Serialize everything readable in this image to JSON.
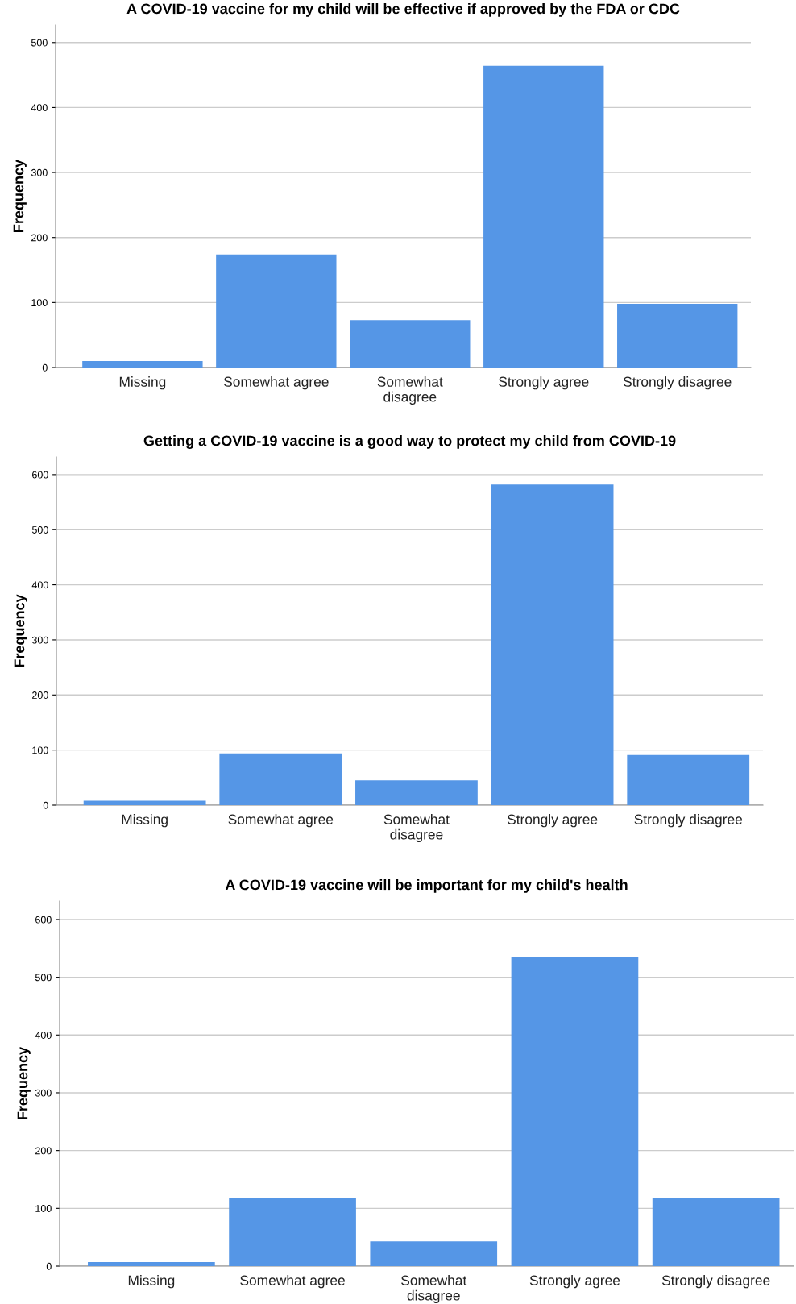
{
  "chart_data": [
    {
      "type": "bar",
      "title": "A COVID-19 vaccine for my child will be effective if approved by the FDA or CDC",
      "ylabel": "Frequency",
      "categories": [
        "Missing",
        "Somewhat agree",
        "Somewhat\ndisagree",
        "Strongly agree",
        "Strongly disagree"
      ],
      "values": [
        10,
        174,
        73,
        464,
        98
      ],
      "color": "#5596e6",
      "ylim": [
        0,
        527
      ],
      "yticks": [
        0,
        100,
        200,
        300,
        400,
        500
      ],
      "grid": "y"
    },
    {
      "type": "bar",
      "title": "Getting a COVID-19 vaccine is a good way to protect my child from COVID-19",
      "ylabel": "Frequency",
      "categories": [
        "Missing",
        "Somewhat agree",
        "Somewhat\ndisagree",
        "Strongly agree",
        "Strongly disagree"
      ],
      "values": [
        8,
        94,
        45,
        582,
        91
      ],
      "color": "#5596e6",
      "ylim": [
        0,
        632
      ],
      "yticks": [
        0,
        100,
        200,
        300,
        400,
        500,
        600
      ],
      "grid": "y"
    },
    {
      "type": "bar",
      "title": "A COVID-19 vaccine will be important for my child's health",
      "ylabel": "Frequency",
      "categories": [
        "Missing",
        "Somewhat agree",
        "Somewhat\ndisagree",
        "Strongly agree",
        "Strongly disagree"
      ],
      "values": [
        7,
        118,
        43,
        535,
        118
      ],
      "color": "#5596e6",
      "ylim": [
        0,
        632
      ],
      "yticks": [
        0,
        100,
        200,
        300,
        400,
        500,
        600
      ],
      "grid": "y"
    }
  ]
}
